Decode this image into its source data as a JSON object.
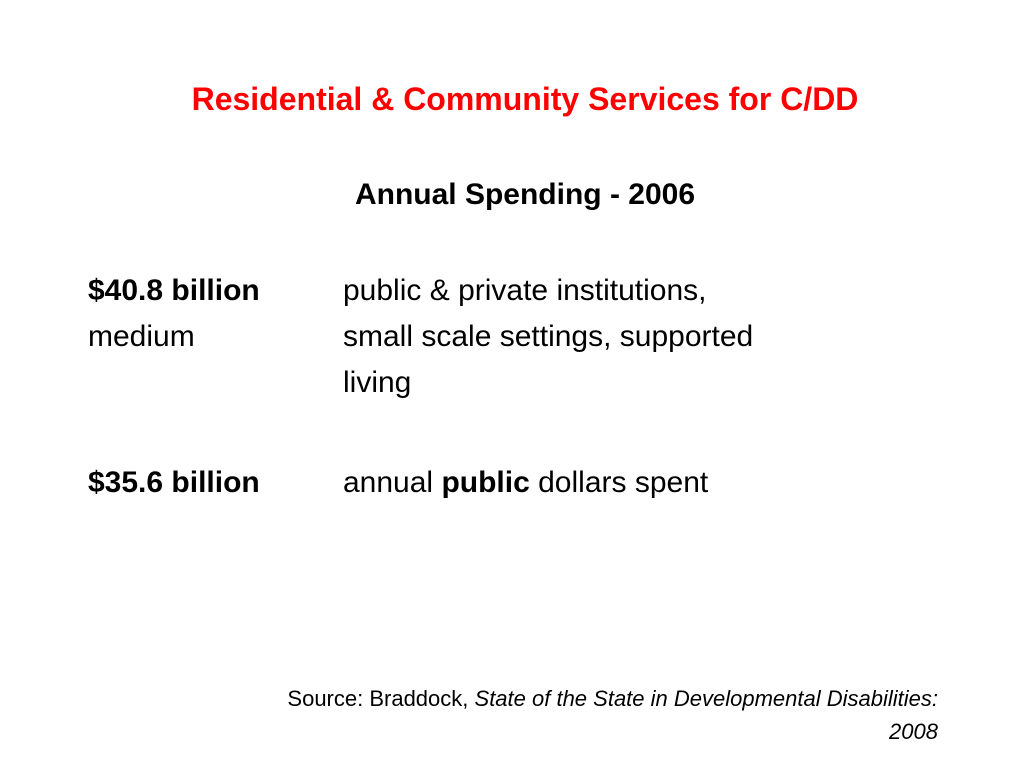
{
  "slide": {
    "title": "Residential & Community Services for C/DD",
    "subtitle": "Annual Spending - 2006",
    "entries": [
      {
        "amount": "$40.8 billion",
        "amount_sub": "medium",
        "description_lines": [
          "public & private institutions,",
          "small scale settings, supported",
          "living"
        ]
      },
      {
        "amount": "$35.6 billion",
        "description_pre": "annual ",
        "description_bold": "public",
        "description_post": " dollars spent"
      }
    ],
    "source": {
      "prefix": "Source: Braddock, ",
      "title_italic_line1": "State of the State in Developmental Disabilities:",
      "title_italic_line2": "2008"
    }
  },
  "colors": {
    "title": "#ff0000",
    "text": "#000000",
    "background": "#ffffff"
  }
}
